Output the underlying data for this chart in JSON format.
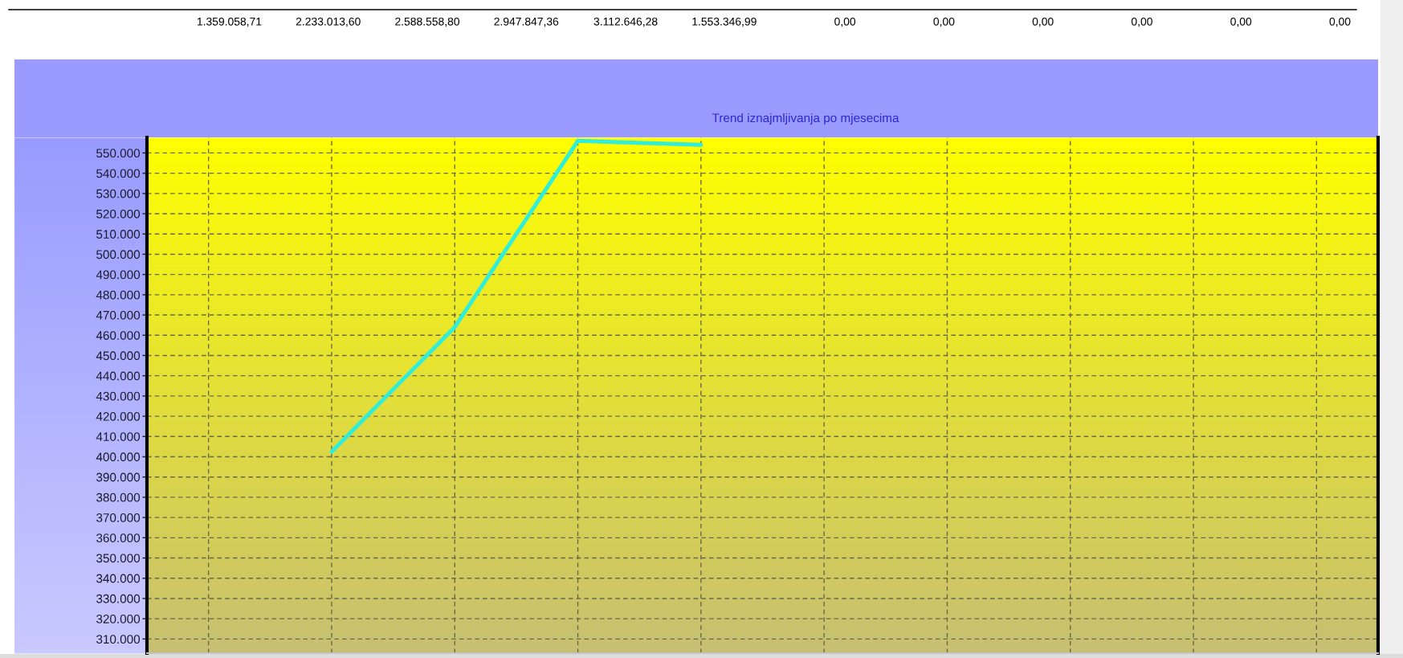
{
  "chart_data": {
    "type": "line",
    "title": "Trend iznajmljivanja po mjesecima",
    "categories": [
      null,
      null,
      null,
      null,
      null,
      null,
      null,
      null,
      null,
      null
    ],
    "values": [
      null,
      402500,
      464000,
      556000,
      554000,
      null,
      null,
      null,
      null,
      null
    ],
    "color": "#30eed8",
    "ylim": [
      303000,
      557700
    ],
    "yticks": [
      {
        "value": 310000,
        "label": "310.000"
      },
      {
        "value": 320000,
        "label": "320.000"
      },
      {
        "value": 330000,
        "label": "330.000"
      },
      {
        "value": 340000,
        "label": "340.000"
      },
      {
        "value": 350000,
        "label": "350.000"
      },
      {
        "value": 360000,
        "label": "360.000"
      },
      {
        "value": 370000,
        "label": "370.000"
      },
      {
        "value": 380000,
        "label": "380.000"
      },
      {
        "value": 390000,
        "label": "390.000"
      },
      {
        "value": 400000,
        "label": "400.000"
      },
      {
        "value": 410000,
        "label": "410.000"
      },
      {
        "value": 420000,
        "label": "420.000"
      },
      {
        "value": 430000,
        "label": "430.000"
      },
      {
        "value": 440000,
        "label": "440.000"
      },
      {
        "value": 450000,
        "label": "450.000"
      },
      {
        "value": 460000,
        "label": "460.000"
      },
      {
        "value": 470000,
        "label": "470.000"
      },
      {
        "value": 480000,
        "label": "480.000"
      },
      {
        "value": 490000,
        "label": "490.000"
      },
      {
        "value": 500000,
        "label": "500.000"
      },
      {
        "value": 510000,
        "label": "510.000"
      },
      {
        "value": 520000,
        "label": "520.000"
      },
      {
        "value": 530000,
        "label": "530.000"
      },
      {
        "value": 540000,
        "label": "540.000"
      },
      {
        "value": 550000,
        "label": "550.000"
      }
    ],
    "tick_labels": "y",
    "grid": true,
    "annotations": [
      "1.359.058,71",
      "2.233.013,60",
      "2.588.558,80",
      "2.947.847,36",
      "3.112.646,28",
      "1.553.346,99",
      "0,00",
      "0,00",
      "0,00",
      "0,00",
      "0,00",
      "0,00"
    ]
  }
}
